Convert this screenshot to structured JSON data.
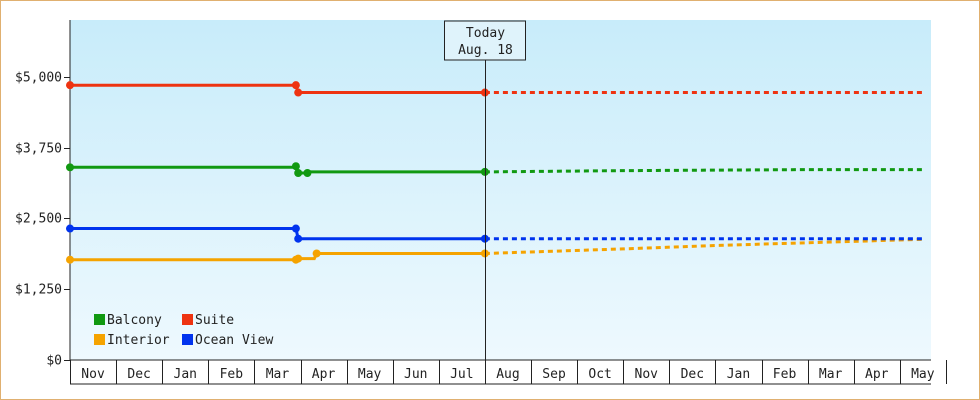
{
  "chart_data": {
    "type": "line",
    "ylim": [
      0,
      6000
    ],
    "yticks": [
      0,
      1250,
      2500,
      3750,
      5000
    ],
    "ytick_labels": [
      "$0",
      "$1,250",
      "$2,500",
      "$3,750",
      "$5,000"
    ],
    "months": [
      "Nov",
      "Dec",
      "Jan",
      "Feb",
      "Mar",
      "Apr",
      "May",
      "Jun",
      "Jul",
      "Aug",
      "Sep",
      "Oct",
      "Nov",
      "Dec",
      "Jan",
      "Feb",
      "Mar",
      "Apr",
      "May"
    ],
    "today_label": "Today",
    "today_date": "Aug. 18",
    "today_x": 9.0,
    "grid": false,
    "legend": "bottom-left",
    "series": [
      {
        "name": "Balcony",
        "color": "#119911",
        "actual": [
          [
            0,
            3400
          ],
          [
            4.9,
            3400
          ],
          [
            4.9,
            3420
          ],
          [
            4.95,
            3300
          ],
          [
            5.15,
            3300
          ],
          [
            5.15,
            3320
          ],
          [
            5.2,
            3320
          ],
          [
            9.0,
            3320
          ]
        ],
        "forecast": [
          [
            9.0,
            3320
          ],
          [
            11.8,
            3340
          ],
          [
            16.0,
            3360
          ],
          [
            18.5,
            3360
          ]
        ]
      },
      {
        "name": "Suite",
        "color": "#ee3311",
        "actual": [
          [
            0,
            4850
          ],
          [
            4.9,
            4850
          ],
          [
            4.95,
            4720
          ],
          [
            9.0,
            4720
          ]
        ],
        "forecast": [
          [
            9.0,
            4720
          ],
          [
            18.5,
            4720
          ]
        ]
      },
      {
        "name": "Interior",
        "color": "#f5a300",
        "actual": [
          [
            0,
            1770
          ],
          [
            4.9,
            1770
          ],
          [
            4.95,
            1790
          ],
          [
            5.3,
            1790
          ],
          [
            5.35,
            1880
          ],
          [
            9.0,
            1880
          ]
        ],
        "forecast": [
          [
            9.0,
            1880
          ],
          [
            12.0,
            1960
          ],
          [
            14.0,
            2020
          ],
          [
            18.5,
            2130
          ]
        ]
      },
      {
        "name": "Ocean View",
        "color": "#0033ee",
        "actual": [
          [
            0,
            2320
          ],
          [
            4.9,
            2320
          ],
          [
            4.95,
            2140
          ],
          [
            9.0,
            2140
          ]
        ],
        "forecast": [
          [
            9.0,
            2140
          ],
          [
            18.5,
            2140
          ]
        ]
      }
    ],
    "markers": [
      {
        "series": "Suite",
        "points": [
          [
            0,
            4850
          ],
          [
            4.9,
            4850
          ],
          [
            4.95,
            4720
          ],
          [
            9.0,
            4720
          ]
        ]
      },
      {
        "series": "Balcony",
        "points": [
          [
            0,
            3400
          ],
          [
            4.9,
            3420
          ],
          [
            4.95,
            3300
          ],
          [
            5.15,
            3300
          ],
          [
            9.0,
            3320
          ]
        ]
      },
      {
        "series": "Ocean View",
        "points": [
          [
            0,
            2320
          ],
          [
            4.9,
            2320
          ],
          [
            4.95,
            2140
          ],
          [
            9.0,
            2140
          ]
        ]
      },
      {
        "series": "Interior",
        "points": [
          [
            0,
            1770
          ],
          [
            4.9,
            1770
          ],
          [
            4.95,
            1790
          ],
          [
            5.35,
            1880
          ],
          [
            9.0,
            1880
          ]
        ]
      }
    ]
  }
}
